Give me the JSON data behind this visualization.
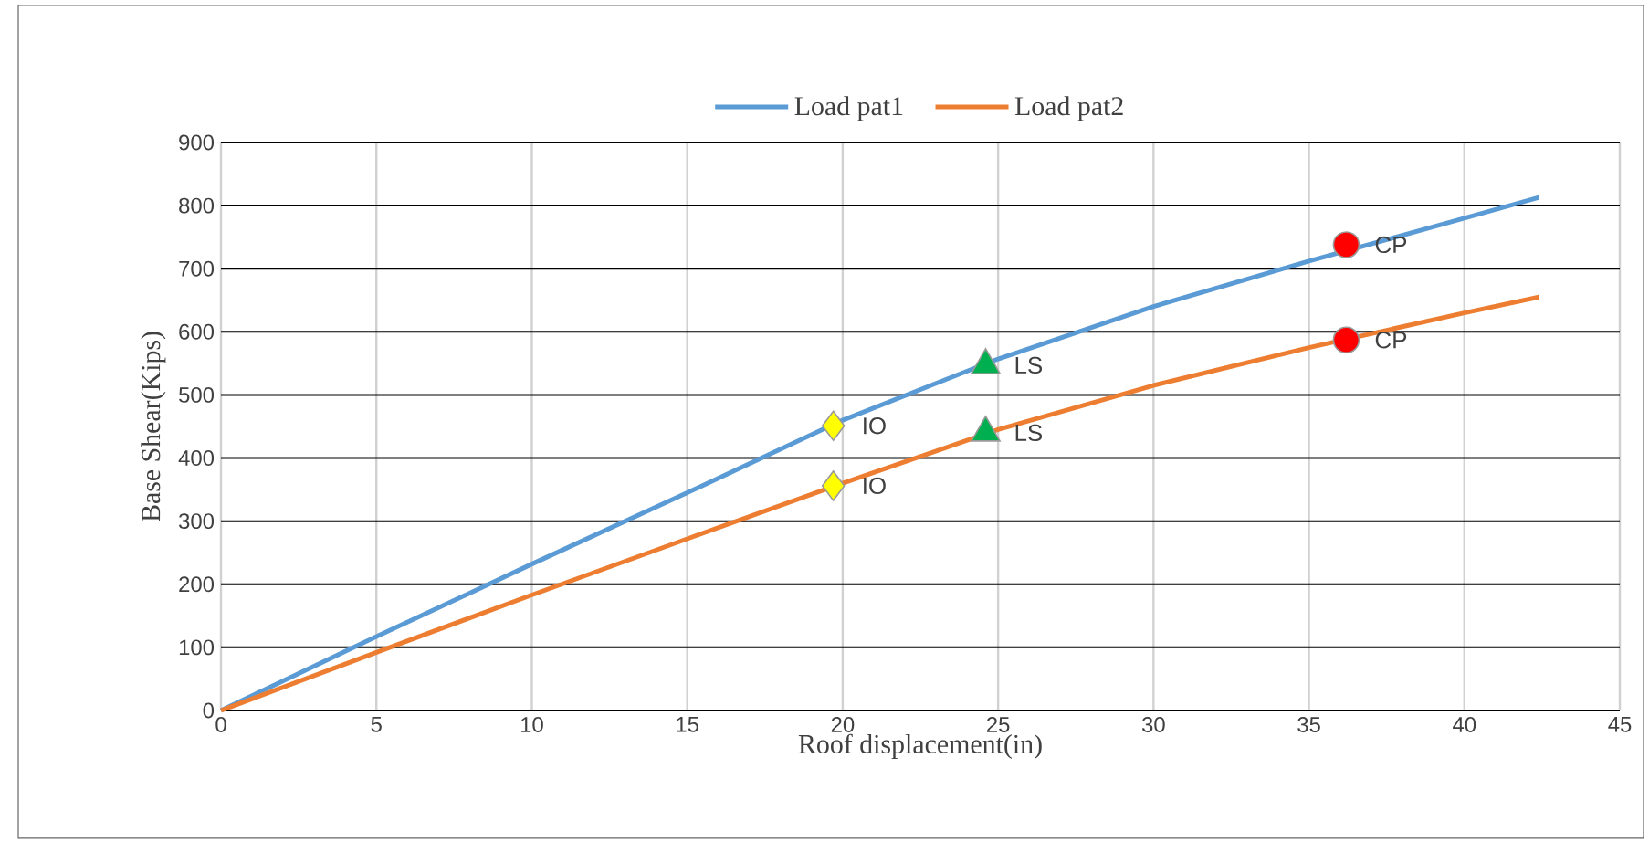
{
  "chart_data": {
    "type": "line",
    "xlabel": "Roof displacement(in)",
    "ylabel": "Base Shear(Kips)",
    "xlim": [
      0,
      45
    ],
    "ylim": [
      0,
      900
    ],
    "xticks": [
      0,
      5,
      10,
      15,
      20,
      25,
      30,
      35,
      40,
      45
    ],
    "yticks": [
      0,
      100,
      200,
      300,
      400,
      500,
      600,
      700,
      800,
      900
    ],
    "grid": true,
    "legend": "top",
    "series": [
      {
        "name": "Load pat1",
        "color": "#5b9bd5",
        "x": [
          0,
          5,
          10,
          15,
          20,
          25,
          30,
          35,
          40,
          42.4
        ],
        "values": [
          0,
          117,
          232,
          345,
          460,
          557,
          640,
          712,
          780,
          813
        ]
      },
      {
        "name": "Load pat2",
        "color": "#ed7d31",
        "x": [
          0,
          5,
          10,
          15,
          20,
          25,
          30,
          35,
          40,
          42.4
        ],
        "values": [
          0,
          92,
          183,
          272,
          360,
          445,
          515,
          575,
          630,
          655
        ]
      },
      {
        "type": "scatter",
        "marker": "diamond",
        "color": "#ffff00",
        "x": [
          19.7,
          19.7
        ],
        "values": [
          451,
          356
        ]
      },
      {
        "type": "scatter",
        "marker": "triangle",
        "color": "#00b050",
        "x": [
          24.6,
          24.6
        ],
        "values": [
          547,
          440
        ]
      },
      {
        "type": "scatter",
        "marker": "circle",
        "color": "#ff0000",
        "x": [
          36.2,
          36.2
        ],
        "values": [
          738,
          587
        ]
      }
    ],
    "annotations": [
      {
        "text": "IO",
        "x": 19.7,
        "y": 451
      },
      {
        "text": "IO",
        "x": 19.7,
        "y": 356
      },
      {
        "text": "LS",
        "x": 24.6,
        "y": 547
      },
      {
        "text": "LS",
        "x": 24.6,
        "y": 440
      },
      {
        "text": "CP",
        "x": 36.2,
        "y": 738
      },
      {
        "text": "CP",
        "x": 36.2,
        "y": 587
      }
    ]
  }
}
